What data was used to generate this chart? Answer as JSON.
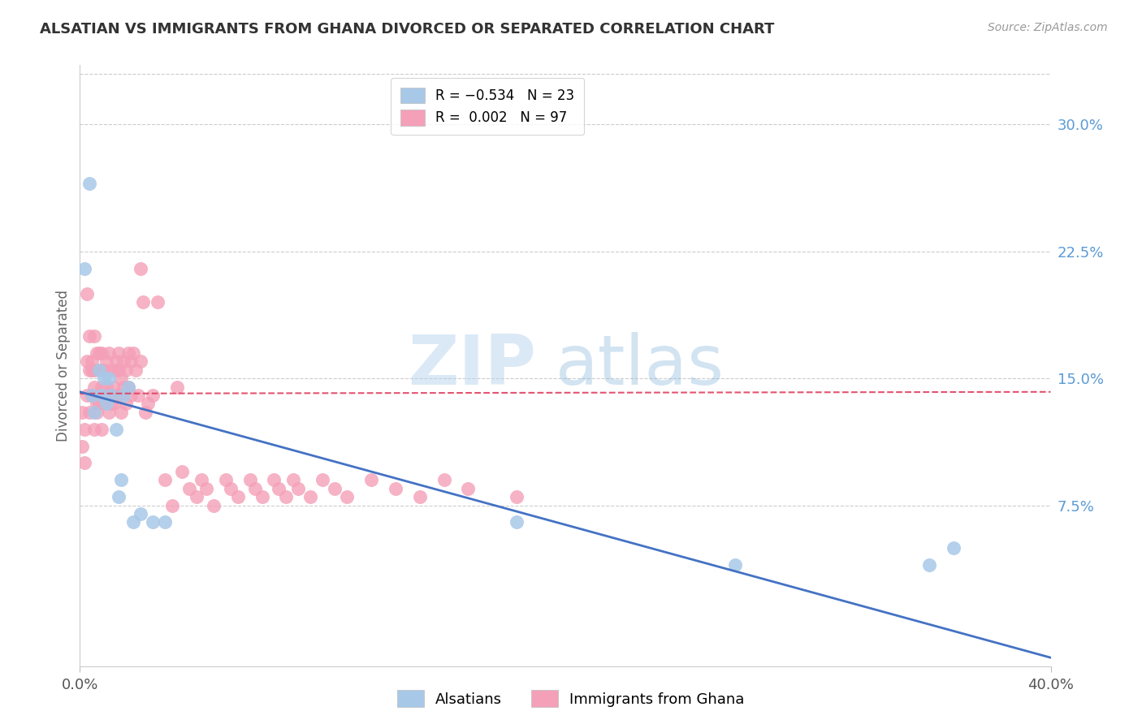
{
  "title": "ALSATIAN VS IMMIGRANTS FROM GHANA DIVORCED OR SEPARATED CORRELATION CHART",
  "source": "Source: ZipAtlas.com",
  "ylabel": "Divorced or Separated",
  "right_yticks": [
    "30.0%",
    "22.5%",
    "15.0%",
    "7.5%"
  ],
  "right_ytick_vals": [
    0.3,
    0.225,
    0.15,
    0.075
  ],
  "xmin": 0.0,
  "xmax": 0.4,
  "ymin": -0.02,
  "ymax": 0.335,
  "alsatian_color": "#a8c8e8",
  "ghana_color": "#f4a0b8",
  "trend_alsatian_color": "#4472c4",
  "trend_ghana_color": "#e04060",
  "alsatians_label": "Alsatians",
  "ghana_label": "Immigrants from Ghana",
  "alsatian_x": [
    0.002,
    0.004,
    0.005,
    0.006,
    0.008,
    0.009,
    0.01,
    0.011,
    0.012,
    0.013,
    0.015,
    0.016,
    0.017,
    0.018,
    0.02,
    0.022,
    0.025,
    0.03,
    0.035,
    0.18,
    0.27,
    0.35,
    0.36
  ],
  "alsatian_y": [
    0.215,
    0.265,
    0.14,
    0.13,
    0.155,
    0.14,
    0.15,
    0.135,
    0.15,
    0.14,
    0.12,
    0.08,
    0.09,
    0.14,
    0.145,
    0.065,
    0.07,
    0.065,
    0.065,
    0.065,
    0.04,
    0.04,
    0.05
  ],
  "ghana_x": [
    0.001,
    0.001,
    0.002,
    0.002,
    0.003,
    0.003,
    0.003,
    0.004,
    0.004,
    0.004,
    0.005,
    0.005,
    0.005,
    0.005,
    0.006,
    0.006,
    0.006,
    0.006,
    0.007,
    0.007,
    0.007,
    0.008,
    0.008,
    0.008,
    0.008,
    0.009,
    0.009,
    0.009,
    0.01,
    0.01,
    0.01,
    0.011,
    0.011,
    0.012,
    0.012,
    0.012,
    0.013,
    0.013,
    0.013,
    0.014,
    0.014,
    0.015,
    0.015,
    0.015,
    0.016,
    0.016,
    0.016,
    0.017,
    0.017,
    0.018,
    0.018,
    0.019,
    0.019,
    0.02,
    0.02,
    0.021,
    0.021,
    0.022,
    0.023,
    0.024,
    0.025,
    0.025,
    0.026,
    0.027,
    0.028,
    0.03,
    0.032,
    0.035,
    0.038,
    0.04,
    0.042,
    0.045,
    0.048,
    0.05,
    0.052,
    0.055,
    0.06,
    0.062,
    0.065,
    0.07,
    0.072,
    0.075,
    0.08,
    0.082,
    0.085,
    0.088,
    0.09,
    0.095,
    0.1,
    0.105,
    0.11,
    0.12,
    0.13,
    0.14,
    0.15,
    0.16,
    0.18
  ],
  "ghana_y": [
    0.13,
    0.11,
    0.1,
    0.12,
    0.2,
    0.14,
    0.16,
    0.13,
    0.155,
    0.175,
    0.14,
    0.16,
    0.155,
    0.14,
    0.145,
    0.12,
    0.155,
    0.175,
    0.13,
    0.165,
    0.135,
    0.14,
    0.165,
    0.155,
    0.135,
    0.12,
    0.145,
    0.165,
    0.14,
    0.135,
    0.155,
    0.16,
    0.145,
    0.14,
    0.13,
    0.165,
    0.14,
    0.155,
    0.135,
    0.145,
    0.135,
    0.16,
    0.155,
    0.14,
    0.165,
    0.155,
    0.14,
    0.15,
    0.13,
    0.16,
    0.145,
    0.155,
    0.135,
    0.145,
    0.165,
    0.16,
    0.14,
    0.165,
    0.155,
    0.14,
    0.215,
    0.16,
    0.195,
    0.13,
    0.135,
    0.14,
    0.195,
    0.09,
    0.075,
    0.145,
    0.095,
    0.085,
    0.08,
    0.09,
    0.085,
    0.075,
    0.09,
    0.085,
    0.08,
    0.09,
    0.085,
    0.08,
    0.09,
    0.085,
    0.08,
    0.09,
    0.085,
    0.08,
    0.09,
    0.085,
    0.08,
    0.09,
    0.085,
    0.08,
    0.09,
    0.085,
    0.08
  ],
  "trend_als_x0": 0.0,
  "trend_als_y0": 0.142,
  "trend_als_x1": 0.4,
  "trend_als_y1": -0.015,
  "trend_gha_x0": 0.0,
  "trend_gha_y0": 0.141,
  "trend_gha_x1": 0.4,
  "trend_gha_y1": 0.142
}
